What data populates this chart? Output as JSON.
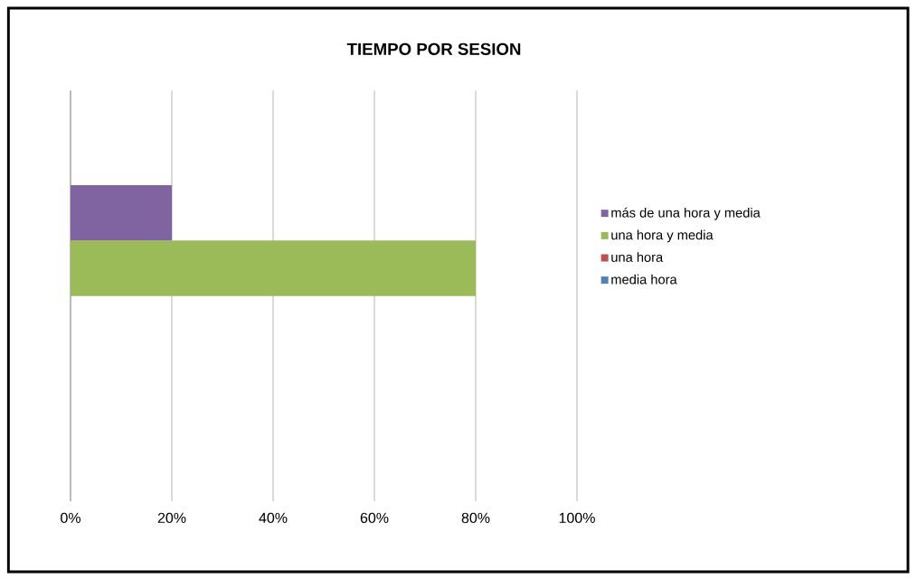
{
  "chart_data": {
    "type": "bar",
    "orientation": "horizontal",
    "title": "TIEMPO POR SESION",
    "categories": [
      null
    ],
    "series": [
      {
        "name": "media hora",
        "color": "#4f81bd",
        "values": [
          0
        ]
      },
      {
        "name": "una hora",
        "color": "#c0504d",
        "values": [
          0
        ]
      },
      {
        "name": "una hora y media",
        "color": "#9bbb59",
        "values": [
          80
        ]
      },
      {
        "name": "más de una hora y media",
        "color": "#8064a2",
        "values": [
          20
        ]
      }
    ],
    "xlim": [
      0,
      100
    ],
    "xticks": [
      {
        "value": 0,
        "label": "0%"
      },
      {
        "value": 20,
        "label": "20%"
      },
      {
        "value": 40,
        "label": "40%"
      },
      {
        "value": 60,
        "label": "60%"
      },
      {
        "value": 80,
        "label": "80%"
      },
      {
        "value": 100,
        "label": "100%"
      }
    ],
    "grid": "x",
    "legend": "right"
  }
}
